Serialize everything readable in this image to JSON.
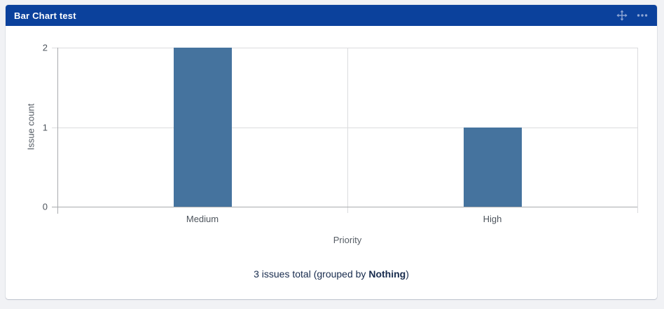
{
  "page": {
    "background": "#F1F2F5"
  },
  "gadget": {
    "title": "Bar Chart test",
    "header_bg": "#0B419C",
    "icon_color": "#8FA6D4"
  },
  "chart_data": {
    "type": "bar",
    "title": "Bar Chart test",
    "categories": [
      "Medium",
      "High"
    ],
    "values": [
      2,
      1
    ],
    "xlabel": "Priority",
    "ylabel": "Issue count",
    "ylim": [
      0,
      2
    ],
    "yticks": [
      0,
      1,
      2
    ],
    "grid": true,
    "legend": false,
    "bar_color": "#45739E",
    "axis_color": "#A9ABAE",
    "gridline_color": "#DBDCDE"
  },
  "footer": {
    "text_prefix": "3 issues total (grouped by ",
    "text_bold": "Nothing",
    "text_suffix": ")"
  }
}
